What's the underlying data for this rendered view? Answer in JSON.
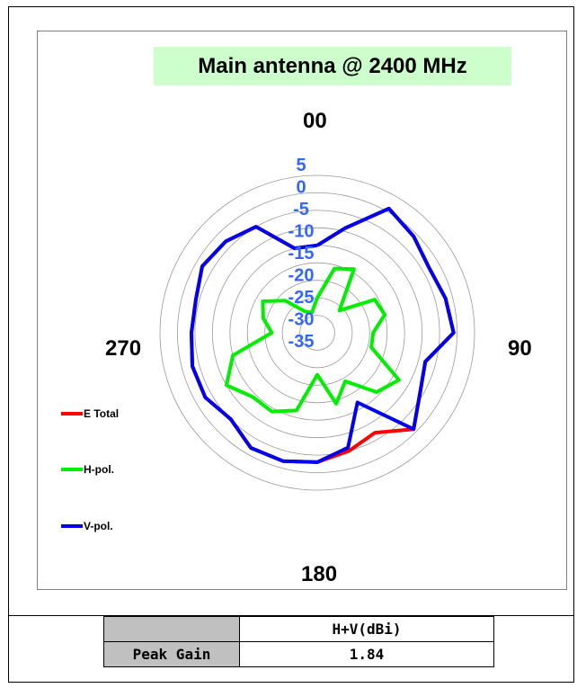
{
  "chart_data": {
    "type": "polar-line",
    "title": "Main antenna @ 2400 MHz",
    "direction_labels": {
      "top": "00",
      "right": "90",
      "bottom": "180",
      "left": "270"
    },
    "radial_ticks": [
      "5",
      "0",
      "-5",
      "-10",
      "-15",
      "-20",
      "-25",
      "-30",
      "-35"
    ],
    "radial_range": [
      -40,
      5
    ],
    "grid": true,
    "legend_position": "left",
    "angles_deg": [
      0,
      15,
      30,
      45,
      60,
      75,
      90,
      105,
      120,
      135,
      150,
      165,
      180,
      195,
      210,
      225,
      240,
      255,
      270,
      285,
      300,
      315,
      330,
      345
    ],
    "series": [
      {
        "name": "E Total",
        "color": "#ff0000",
        "values": [
          -15,
          -9,
          1,
          -1,
          -3,
          -2,
          -1,
          -8,
          -6,
          -1,
          -7,
          -5,
          -3,
          -2,
          -2,
          -5,
          -3,
          -3,
          -4,
          -4,
          -2,
          -3,
          -5,
          -15
        ]
      },
      {
        "name": "H-pol.",
        "color": "#00ee00",
        "values": [
          -30,
          -21,
          -19,
          -31,
          -21,
          -20,
          -24,
          -24,
          -13,
          -16,
          -24,
          -19,
          -28,
          -17,
          -14,
          -14,
          -10,
          -15,
          -27,
          -24,
          -22,
          -27,
          -33,
          -34
        ]
      },
      {
        "name": "V-pol.",
        "color": "#0000ee",
        "values": [
          -15,
          -9,
          1,
          -1,
          -3,
          -2,
          -1,
          -8,
          -6,
          -1,
          -17,
          -6,
          -3,
          -2,
          -2,
          -5,
          -3,
          -3,
          -4,
          -4,
          -2,
          -3,
          -5,
          -15
        ]
      }
    ]
  },
  "table": {
    "header": "H+V(dBi)",
    "row_label": "Peak Gain",
    "row_value": "1.84"
  }
}
